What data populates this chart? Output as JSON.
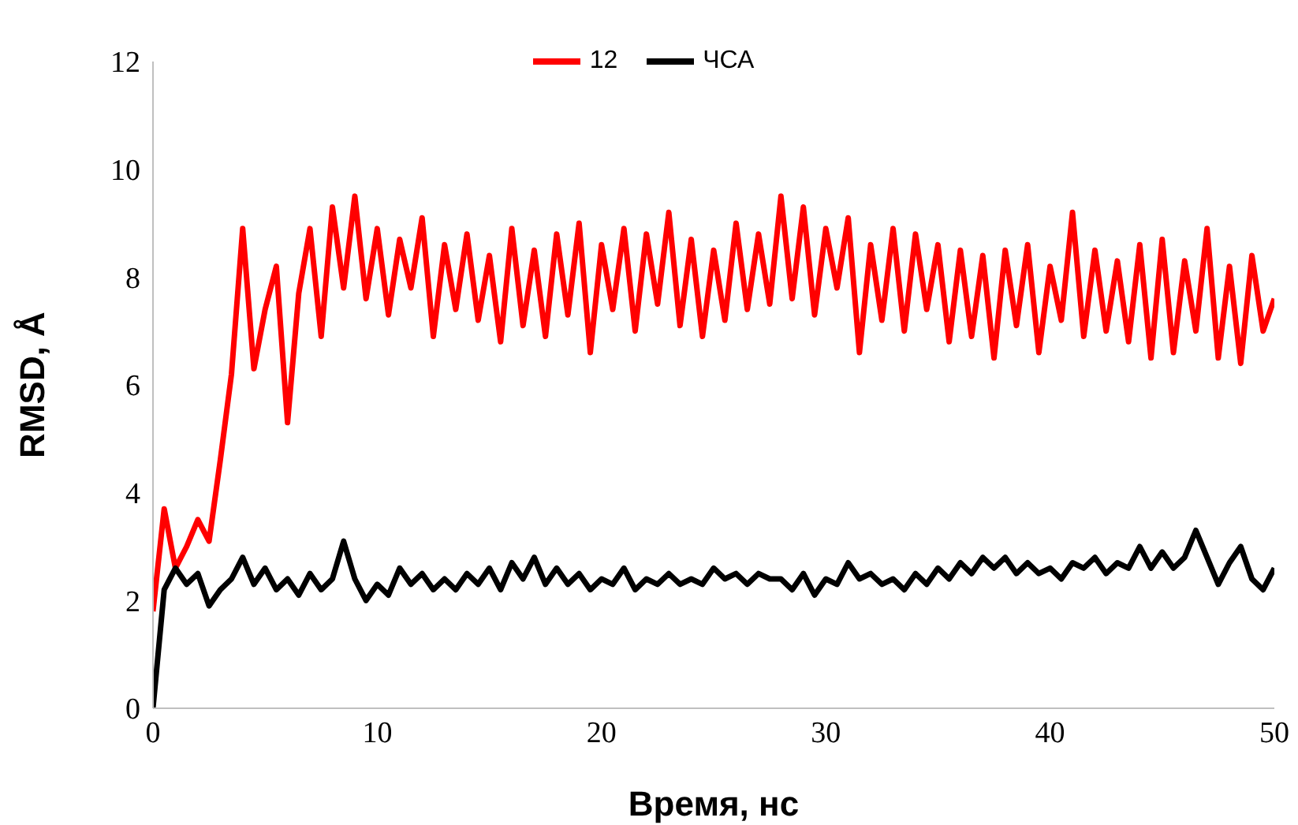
{
  "chart_data": {
    "type": "line",
    "xlabel": "Время, нс",
    "ylabel": "RMSD, Å",
    "x": [
      0,
      0.5,
      1,
      1.5,
      2,
      2.5,
      3,
      3.5,
      4,
      4.5,
      5,
      5.5,
      6,
      6.5,
      7,
      7.5,
      8,
      8.5,
      9,
      9.5,
      10,
      10.5,
      11,
      11.5,
      12,
      12.5,
      13,
      13.5,
      14,
      14.5,
      15,
      15.5,
      16,
      16.5,
      17,
      17.5,
      18,
      18.5,
      19,
      19.5,
      20,
      20.5,
      21,
      21.5,
      22,
      22.5,
      23,
      23.5,
      24,
      24.5,
      25,
      25.5,
      26,
      26.5,
      27,
      27.5,
      28,
      28.5,
      29,
      29.5,
      30,
      30.5,
      31,
      31.5,
      32,
      32.5,
      33,
      33.5,
      34,
      34.5,
      35,
      35.5,
      36,
      36.5,
      37,
      37.5,
      38,
      38.5,
      39,
      39.5,
      40,
      40.5,
      41,
      41.5,
      42,
      42.5,
      43,
      43.5,
      44,
      44.5,
      45,
      45.5,
      46,
      46.5,
      47,
      47.5,
      48,
      48.5,
      49,
      49.5,
      50
    ],
    "series": [
      {
        "name": "12",
        "color": "#ff0000",
        "values": [
          1.8,
          3.7,
          2.6,
          3.0,
          3.5,
          3.1,
          4.6,
          6.2,
          8.9,
          6.3,
          7.4,
          8.2,
          5.3,
          7.7,
          8.9,
          6.9,
          9.3,
          7.8,
          9.5,
          7.6,
          8.9,
          7.3,
          8.7,
          7.8,
          9.1,
          6.9,
          8.6,
          7.4,
          8.8,
          7.2,
          8.4,
          6.8,
          8.9,
          7.1,
          8.5,
          6.9,
          8.8,
          7.3,
          9.0,
          6.6,
          8.6,
          7.4,
          8.9,
          7.0,
          8.8,
          7.5,
          9.2,
          7.1,
          8.7,
          6.9,
          8.5,
          7.2,
          9.0,
          7.4,
          8.8,
          7.5,
          9.5,
          7.6,
          9.3,
          7.3,
          8.9,
          7.8,
          9.1,
          6.6,
          8.6,
          7.2,
          8.9,
          7.0,
          8.8,
          7.4,
          8.6,
          6.8,
          8.5,
          6.9,
          8.4,
          6.5,
          8.5,
          7.1,
          8.6,
          6.6,
          8.2,
          7.2,
          9.2,
          6.9,
          8.5,
          7.0,
          8.3,
          6.8,
          8.6,
          6.5,
          8.7,
          6.6,
          8.3,
          7.0,
          8.9,
          6.5,
          8.2,
          6.4,
          8.4,
          7.0,
          7.6
        ]
      },
      {
        "name": "ЧСА",
        "color": "#000000",
        "values": [
          0,
          2.2,
          2.6,
          2.3,
          2.5,
          1.9,
          2.2,
          2.4,
          2.8,
          2.3,
          2.6,
          2.2,
          2.4,
          2.1,
          2.5,
          2.2,
          2.4,
          3.1,
          2.4,
          2.0,
          2.3,
          2.1,
          2.6,
          2.3,
          2.5,
          2.2,
          2.4,
          2.2,
          2.5,
          2.3,
          2.6,
          2.2,
          2.7,
          2.4,
          2.8,
          2.3,
          2.6,
          2.3,
          2.5,
          2.2,
          2.4,
          2.3,
          2.6,
          2.2,
          2.4,
          2.3,
          2.5,
          2.3,
          2.4,
          2.3,
          2.6,
          2.4,
          2.5,
          2.3,
          2.5,
          2.4,
          2.4,
          2.2,
          2.5,
          2.1,
          2.4,
          2.3,
          2.7,
          2.4,
          2.5,
          2.3,
          2.4,
          2.2,
          2.5,
          2.3,
          2.6,
          2.4,
          2.7,
          2.5,
          2.8,
          2.6,
          2.8,
          2.5,
          2.7,
          2.5,
          2.6,
          2.4,
          2.7,
          2.6,
          2.8,
          2.5,
          2.7,
          2.6,
          3.0,
          2.6,
          2.9,
          2.6,
          2.8,
          3.3,
          2.8,
          2.3,
          2.7,
          3.0,
          2.4,
          2.2,
          2.6
        ]
      }
    ],
    "xlim": [
      0,
      50
    ],
    "xticks": [
      0,
      10,
      20,
      30,
      40,
      50
    ],
    "ylim": [
      0,
      12
    ],
    "yticks": [
      0,
      2,
      4,
      6,
      8,
      10,
      12
    ],
    "legend": "top",
    "grid": false,
    "marker": "none",
    "line_style": "solid"
  }
}
